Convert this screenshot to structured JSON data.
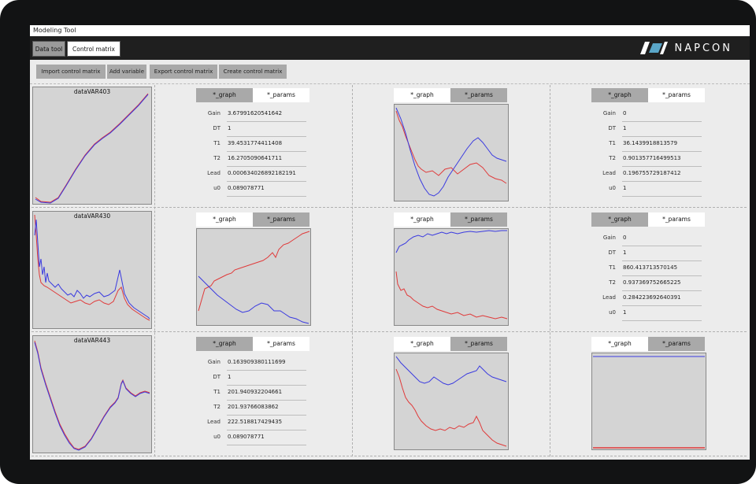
{
  "window": {
    "title": "Modeling Tool"
  },
  "tabs": {
    "data_tool": "Data tool",
    "control_matrix": "Control matrix"
  },
  "brand": {
    "name": "NAPCON"
  },
  "toolbar": {
    "import": "Import control matrix",
    "add_variable": "Add variable",
    "export": "Export control matrix",
    "create": "Create control matrix"
  },
  "segment": {
    "graph": "*_graph",
    "params": "*_params"
  },
  "rows": [
    {
      "data_name": "dataVAR403",
      "cells": [
        {
          "mode": "params",
          "params": [
            {
              "label": "Gain",
              "value": "3.67991620541642"
            },
            {
              "label": "DT",
              "value": "1"
            },
            {
              "label": "T1",
              "value": "39.4531774411408"
            },
            {
              "label": "T2",
              "value": "16.2705090641711"
            },
            {
              "label": "Lead",
              "value": "0.000634026892182191"
            },
            {
              "label": "u0",
              "value": "0.089078771"
            }
          ]
        },
        {
          "mode": "graph"
        },
        {
          "mode": "params",
          "params": [
            {
              "label": "Gain",
              "value": "0"
            },
            {
              "label": "DT",
              "value": "1"
            },
            {
              "label": "T1",
              "value": "36.1439918813579"
            },
            {
              "label": "T2",
              "value": "0.901357716499513"
            },
            {
              "label": "Lead",
              "value": "0.196755729187412"
            },
            {
              "label": "u0",
              "value": "1"
            }
          ]
        }
      ]
    },
    {
      "data_name": "dataVAR430",
      "cells": [
        {
          "mode": "graph"
        },
        {
          "mode": "graph"
        },
        {
          "mode": "params",
          "params": [
            {
              "label": "Gain",
              "value": "0"
            },
            {
              "label": "DT",
              "value": "1"
            },
            {
              "label": "T1",
              "value": "860.413713570145"
            },
            {
              "label": "T2",
              "value": "0.937369752665225"
            },
            {
              "label": "Lead",
              "value": "0.284223692640391"
            },
            {
              "label": "u0",
              "value": "1"
            }
          ]
        }
      ]
    },
    {
      "data_name": "dataVAR443",
      "cells": [
        {
          "mode": "params",
          "params": [
            {
              "label": "Gain",
              "value": "0.163909380111699"
            },
            {
              "label": "DT",
              "value": "1"
            },
            {
              "label": "T1",
              "value": "201.940932204661"
            },
            {
              "label": "T2",
              "value": "201.93766083862"
            },
            {
              "label": "Lead",
              "value": "222.518817429435"
            },
            {
              "label": "u0",
              "value": "0.089078771"
            }
          ]
        },
        {
          "mode": "graph"
        },
        {
          "mode": "graph"
        }
      ]
    }
  ],
  "colors": {
    "series_a": "#3a3ae0",
    "series_b": "#e03a3a",
    "plot_bg": "#d4d4d4"
  }
}
